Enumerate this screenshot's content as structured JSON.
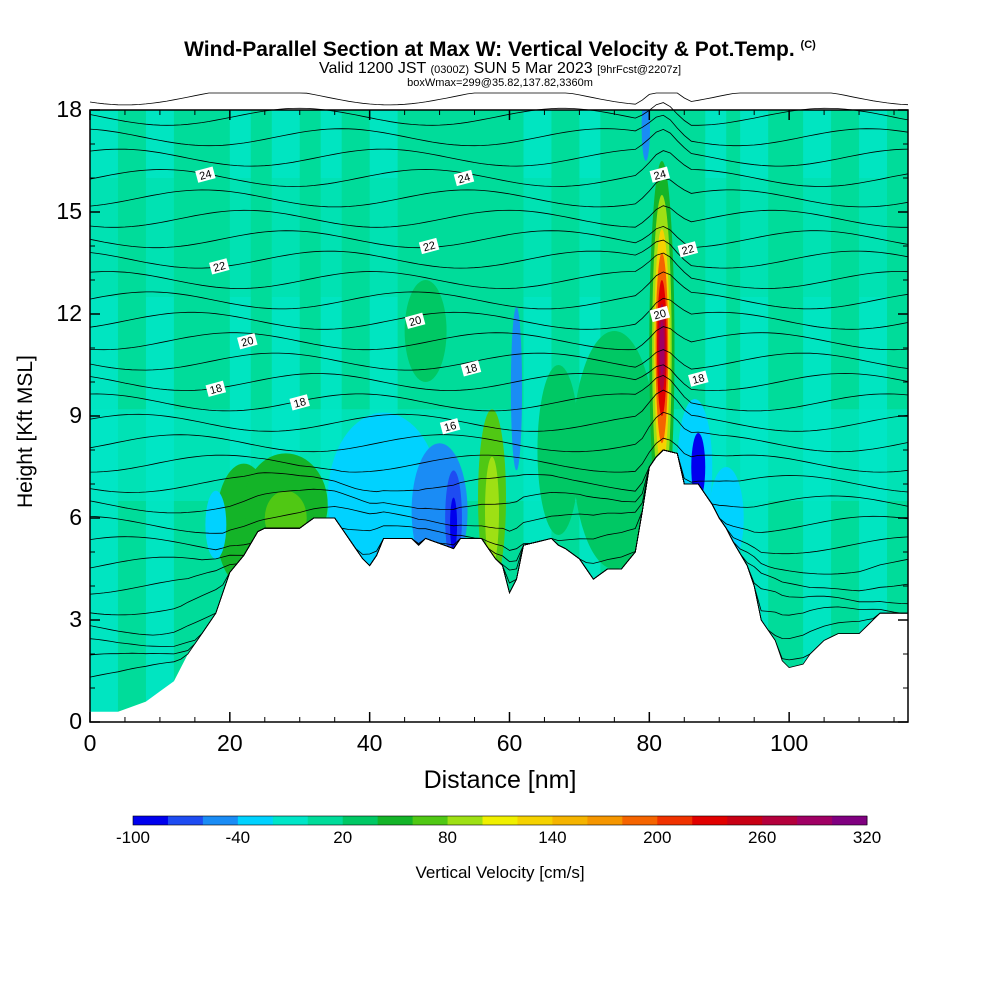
{
  "title": "Wind-Parallel Section at Max W: Vertical Velocity & Pot.Temp.",
  "title_mark": "(C)",
  "subtitle_main": "Valid 1200 JST",
  "subtitle_utc": "(0300Z)",
  "subtitle_date": "SUN 5 Mar 2023",
  "subtitle_fcst": "[9hrFcst@2207z]",
  "info_line": "boxWmax=299@35.82,137.82,3360m",
  "chart_data": {
    "type": "heatmap",
    "xlabel": "Distance [nm]",
    "ylabel": "Height [Kft MSL]",
    "xlim": [
      0,
      117
    ],
    "ylim": [
      0,
      18
    ],
    "x_ticks": [
      "0",
      "20",
      "40",
      "60",
      "80",
      "100"
    ],
    "x_tick_values": [
      0,
      20,
      40,
      60,
      80,
      100
    ],
    "y_ticks": [
      "0",
      "3",
      "6",
      "9",
      "12",
      "15",
      "18"
    ],
    "y_tick_values": [
      0,
      3,
      6,
      9,
      12,
      15,
      18
    ],
    "colorbar": {
      "label": "Vertical Velocity [cm/s]",
      "tick_labels": [
        "-100",
        "-40",
        "20",
        "80",
        "140",
        "200",
        "260",
        "320"
      ],
      "tick_values": [
        -100,
        -40,
        20,
        80,
        140,
        200,
        260,
        320
      ],
      "colors": [
        "#0000ee",
        "#1e4cf2",
        "#1a8cf5",
        "#00d2ff",
        "#00e6c8",
        "#00dc9a",
        "#00c864",
        "#14b428",
        "#50c814",
        "#9ee014",
        "#f0f000",
        "#f5d200",
        "#f5b400",
        "#f59600",
        "#f56400",
        "#f03200",
        "#e10000",
        "#c80014",
        "#b4003c",
        "#a00064",
        "#800080"
      ],
      "min": -100,
      "max": 320
    },
    "theta_contour_labels": [
      {
        "text": "24",
        "x": 16.5,
        "y": 16.1
      },
      {
        "text": "24",
        "x": 53.5,
        "y": 16.0
      },
      {
        "text": "24",
        "x": 81.5,
        "y": 16.1
      },
      {
        "text": "22",
        "x": 18.5,
        "y": 13.4
      },
      {
        "text": "22",
        "x": 48.5,
        "y": 14.0
      },
      {
        "text": "22",
        "x": 85.5,
        "y": 13.9
      },
      {
        "text": "20",
        "x": 22.5,
        "y": 11.2
      },
      {
        "text": "20",
        "x": 46.5,
        "y": 11.8
      },
      {
        "text": "20",
        "x": 81.5,
        "y": 12.0
      },
      {
        "text": "18",
        "x": 18.0,
        "y": 9.8
      },
      {
        "text": "18",
        "x": 30.0,
        "y": 9.4
      },
      {
        "text": "18",
        "x": 54.5,
        "y": 10.4
      },
      {
        "text": "18",
        "x": 87.0,
        "y": 10.1
      },
      {
        "text": "16",
        "x": 51.5,
        "y": 8.7
      }
    ],
    "terrain": [
      [
        0,
        0.3
      ],
      [
        4,
        0.3
      ],
      [
        8,
        0.6
      ],
      [
        10,
        0.9
      ],
      [
        12,
        1.2
      ],
      [
        14,
        2.0
      ],
      [
        16,
        2.6
      ],
      [
        18,
        3.2
      ],
      [
        19,
        3.8
      ],
      [
        20,
        4.4
      ],
      [
        22,
        4.9
      ],
      [
        24,
        5.6
      ],
      [
        25,
        5.7
      ],
      [
        30,
        5.7
      ],
      [
        32,
        6.0
      ],
      [
        35,
        6.0
      ],
      [
        37,
        5.4
      ],
      [
        39,
        4.8
      ],
      [
        40,
        4.6
      ],
      [
        41,
        4.9
      ],
      [
        42,
        5.4
      ],
      [
        44,
        5.4
      ],
      [
        46,
        5.4
      ],
      [
        47,
        5.2
      ],
      [
        48,
        5.4
      ],
      [
        52,
        5.1
      ],
      [
        53,
        5.4
      ],
      [
        56,
        5.4
      ],
      [
        58,
        4.8
      ],
      [
        59,
        4.6
      ],
      [
        60,
        3.8
      ],
      [
        61,
        4.2
      ],
      [
        62,
        5.2
      ],
      [
        66,
        5.4
      ],
      [
        67,
        5.2
      ],
      [
        68,
        5.1
      ],
      [
        70,
        4.8
      ],
      [
        72,
        4.2
      ],
      [
        74,
        4.5
      ],
      [
        76,
        4.5
      ],
      [
        78,
        5.0
      ],
      [
        79,
        6.2
      ],
      [
        80,
        7.5
      ],
      [
        81,
        7.8
      ],
      [
        82,
        8.0
      ],
      [
        84,
        7.9
      ],
      [
        85,
        7.0
      ],
      [
        87,
        7.0
      ],
      [
        89,
        6.4
      ],
      [
        90,
        6.0
      ],
      [
        91,
        5.7
      ],
      [
        92,
        5.3
      ],
      [
        94,
        4.6
      ],
      [
        95,
        4.0
      ],
      [
        96,
        3.0
      ],
      [
        98,
        2.4
      ],
      [
        99,
        1.8
      ],
      [
        100,
        1.6
      ],
      [
        102,
        1.7
      ],
      [
        103,
        2.0
      ],
      [
        105,
        2.4
      ],
      [
        107,
        2.6
      ],
      [
        110,
        2.6
      ],
      [
        112,
        3.0
      ],
      [
        113,
        3.2
      ],
      [
        117,
        3.2
      ]
    ],
    "w_features": [
      {
        "x": 81.8,
        "y": 11.0,
        "w_peak": 299
      },
      {
        "x": 57.5,
        "y": 6.5,
        "w_peak": 70
      },
      {
        "x": 28.0,
        "y": 6.4,
        "w_peak": 55
      },
      {
        "x": 52.0,
        "y": 6.0,
        "w_peak": -100
      },
      {
        "x": 61.0,
        "y": 10.0,
        "w_peak": -70
      },
      {
        "x": 87.0,
        "y": 7.5,
        "w_peak": -90
      }
    ]
  }
}
